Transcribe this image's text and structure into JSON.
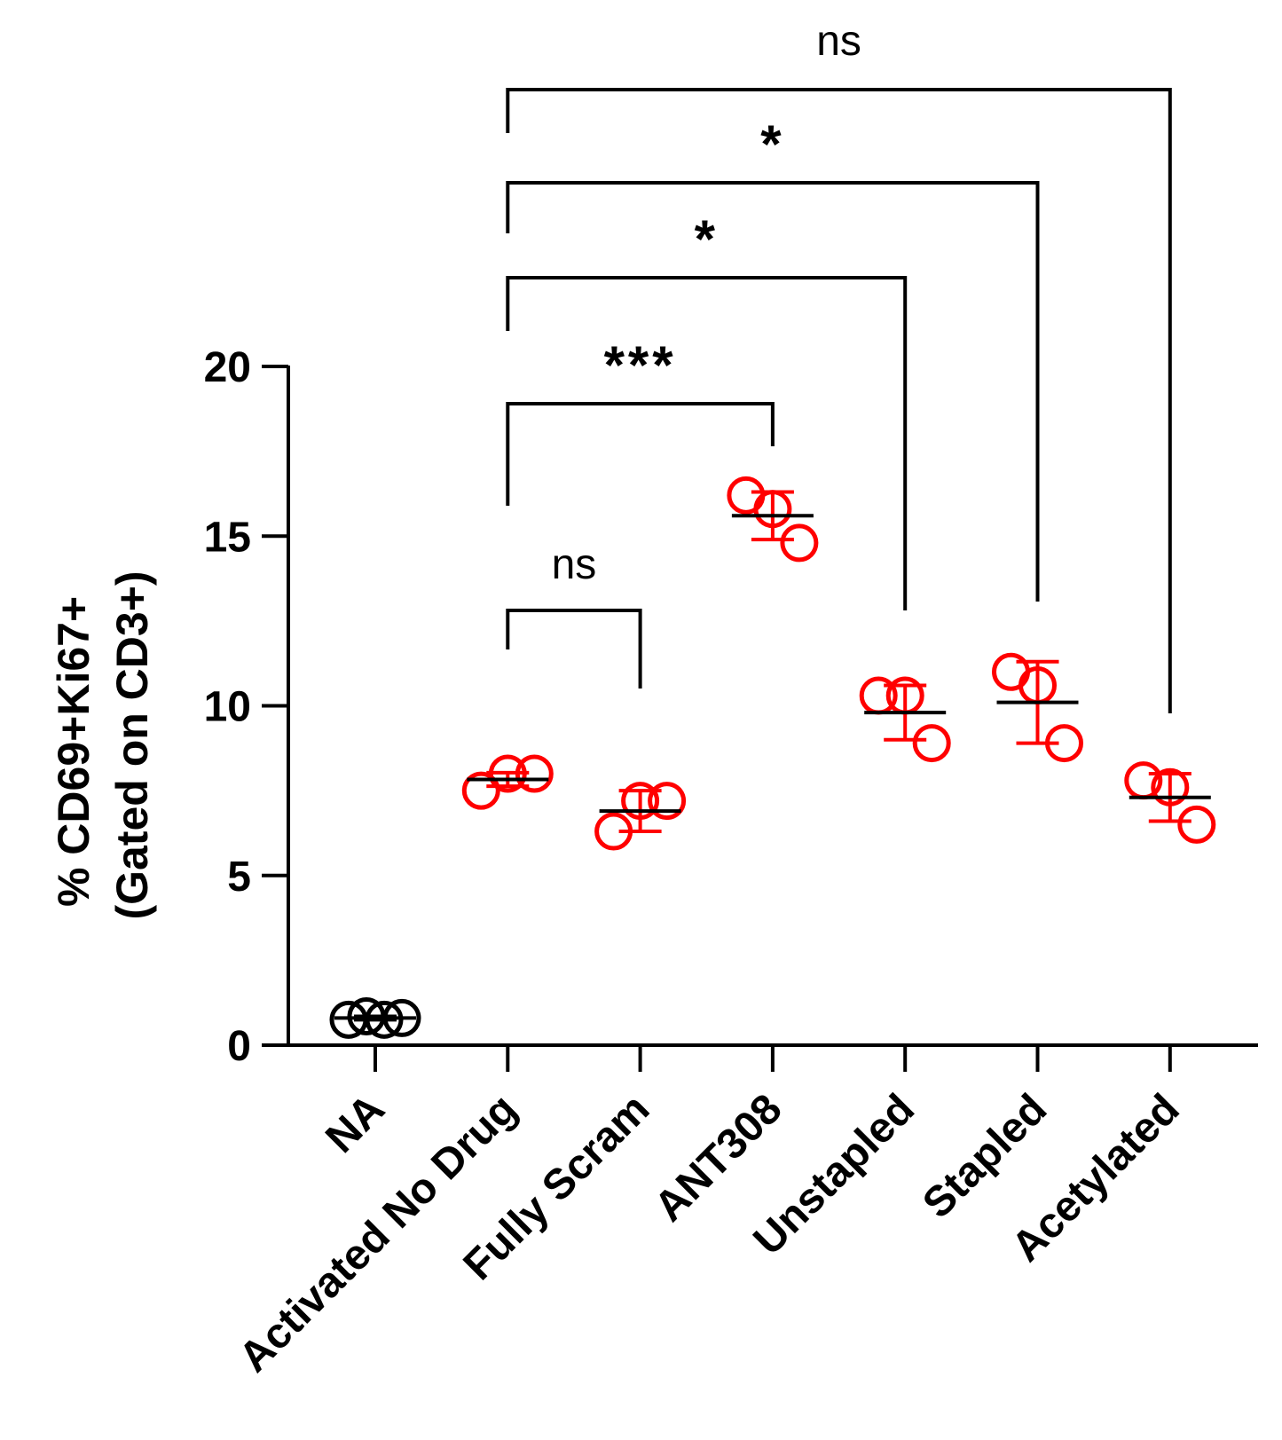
{
  "chart_data": {
    "type": "scatter",
    "ylabel_line1": "% CD69+Ki67+",
    "ylabel_line2": "(Gated on CD3+)",
    "ylim": [
      0,
      20
    ],
    "yticks": [
      0,
      5,
      10,
      15,
      20
    ],
    "categories": [
      "NA",
      "Activated No Drug",
      "Fully Scram",
      "ANT308",
      "Unstapled",
      "Stapled",
      "Acetylated"
    ],
    "groups": [
      {
        "name": "NA",
        "color": "#000000",
        "points": [
          0.75,
          0.85,
          0.75,
          0.8
        ],
        "mean": 0.8,
        "sd": 0.05
      },
      {
        "name": "Activated No Drug",
        "color": "#ff0000",
        "points": [
          7.5,
          8.0,
          8.0
        ],
        "mean": 7.83,
        "sd": 0.2
      },
      {
        "name": "Fully Scram",
        "color": "#ff0000",
        "points": [
          6.3,
          7.2,
          7.2
        ],
        "mean": 6.9,
        "sd": 0.6
      },
      {
        "name": "ANT308",
        "color": "#ff0000",
        "points": [
          16.2,
          15.8,
          14.8
        ],
        "mean": 15.6,
        "sd": 0.7
      },
      {
        "name": "Unstapled",
        "color": "#ff0000",
        "points": [
          10.3,
          10.3,
          8.9
        ],
        "mean": 9.8,
        "sd": 0.8
      },
      {
        "name": "Stapled",
        "color": "#ff0000",
        "points": [
          11.0,
          10.6,
          8.9
        ],
        "mean": 10.1,
        "sd": 1.2
      },
      {
        "name": "Acetylated",
        "color": "#ff0000",
        "points": [
          7.8,
          7.6,
          6.5
        ],
        "mean": 7.3,
        "sd": 0.7
      }
    ],
    "comparisons": [
      {
        "from": "Activated No Drug",
        "to": "Fully Scram",
        "label": "ns"
      },
      {
        "from": "Activated No Drug",
        "to": "ANT308",
        "label": "***"
      },
      {
        "from": "Activated No Drug",
        "to": "Unstapled",
        "label": "*"
      },
      {
        "from": "Activated No Drug",
        "to": "Stapled",
        "label": "*"
      },
      {
        "from": "Activated No Drug",
        "to": "Acetylated",
        "label": "ns"
      }
    ]
  }
}
